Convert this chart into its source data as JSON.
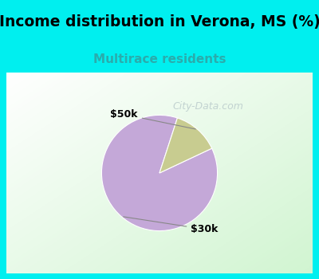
{
  "title": "Income distribution in Verona, MS (%)",
  "subtitle": "Multirace residents",
  "title_bg_color": "#00EFEF",
  "chart_border_color": "#00EFEF",
  "chart_bg_top": "#FFFFFF",
  "chart_bg_bottom": "#C8E8C0",
  "slices": [
    {
      "label": "$30k",
      "value": 87,
      "color": "#C4A8D8"
    },
    {
      "label": "$50k",
      "value": 13,
      "color": "#C8CC90"
    }
  ],
  "title_fontsize": 13.5,
  "subtitle_fontsize": 11,
  "subtitle_color": "#2AACAC",
  "label_fontsize": 9,
  "startangle": 72,
  "watermark": "City-Data.com",
  "watermark_color": "#BBCCCC",
  "watermark_fontsize": 9
}
